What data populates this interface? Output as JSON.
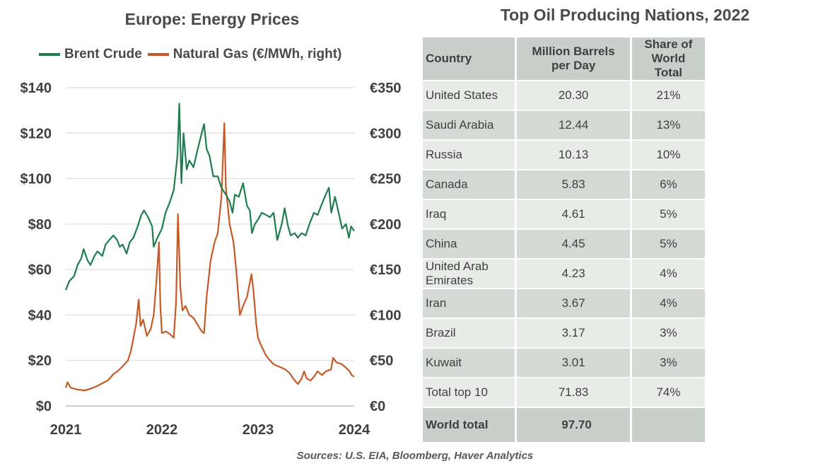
{
  "chart_data": [
    {
      "type": "line",
      "title": "Europe: Energy Prices",
      "x_axis": {
        "range": [
          "2021-01-01",
          "2024-01-01"
        ],
        "tick_labels": [
          "2021",
          "2022",
          "2023",
          "2024"
        ]
      },
      "y_left": {
        "range": [
          0,
          140
        ],
        "tick_labels": [
          "$0",
          "$20",
          "$40",
          "$60",
          "$80",
          "$100",
          "$120",
          "$140"
        ]
      },
      "y_right": {
        "range": [
          0,
          350
        ],
        "tick_labels": [
          "€0",
          "€50",
          "€100",
          "€150",
          "€200",
          "€250",
          "€300",
          "€350"
        ]
      },
      "grid": "horizontal",
      "legend_position": "top",
      "series": [
        {
          "name": "Brent Crude",
          "axis": "left",
          "color": "#1e7d4e",
          "points": [
            [
              "2021-01-01",
              51
            ],
            [
              "2021-01-15",
              55
            ],
            [
              "2021-02-01",
              57
            ],
            [
              "2021-02-15",
              62
            ],
            [
              "2021-03-01",
              65
            ],
            [
              "2021-03-10",
              69
            ],
            [
              "2021-03-25",
              64
            ],
            [
              "2021-04-05",
              62
            ],
            [
              "2021-04-20",
              66
            ],
            [
              "2021-05-01",
              68
            ],
            [
              "2021-05-20",
              66
            ],
            [
              "2021-06-01",
              71
            ],
            [
              "2021-06-15",
              73
            ],
            [
              "2021-07-01",
              75
            ],
            [
              "2021-07-15",
              73
            ],
            [
              "2021-07-25",
              70
            ],
            [
              "2021-08-05",
              71
            ],
            [
              "2021-08-20",
              67
            ],
            [
              "2021-09-01",
              72
            ],
            [
              "2021-09-15",
              74
            ],
            [
              "2021-10-01",
              79
            ],
            [
              "2021-10-15",
              84
            ],
            [
              "2021-10-25",
              86
            ],
            [
              "2021-11-10",
              83
            ],
            [
              "2021-11-25",
              79
            ],
            [
              "2021-12-01",
              70
            ],
            [
              "2021-12-15",
              74
            ],
            [
              "2022-01-01",
              78
            ],
            [
              "2022-01-15",
              85
            ],
            [
              "2022-02-01",
              90
            ],
            [
              "2022-02-15",
              95
            ],
            [
              "2022-03-01",
              110
            ],
            [
              "2022-03-08",
              133
            ],
            [
              "2022-03-16",
              98
            ],
            [
              "2022-03-24",
              120
            ],
            [
              "2022-04-05",
              104
            ],
            [
              "2022-04-15",
              108
            ],
            [
              "2022-05-01",
              105
            ],
            [
              "2022-05-15",
              112
            ],
            [
              "2022-06-01",
              120
            ],
            [
              "2022-06-10",
              124
            ],
            [
              "2022-06-20",
              113
            ],
            [
              "2022-07-01",
              110
            ],
            [
              "2022-07-15",
              101
            ],
            [
              "2022-08-01",
              101
            ],
            [
              "2022-08-15",
              96
            ],
            [
              "2022-09-01",
              93
            ],
            [
              "2022-09-15",
              90
            ],
            [
              "2022-09-26",
              85
            ],
            [
              "2022-10-05",
              93
            ],
            [
              "2022-10-20",
              92
            ],
            [
              "2022-11-05",
              98
            ],
            [
              "2022-11-20",
              88
            ],
            [
              "2022-12-01",
              86
            ],
            [
              "2022-12-09",
              76
            ],
            [
              "2022-12-20",
              80
            ],
            [
              "2023-01-01",
              82
            ],
            [
              "2023-01-15",
              85
            ],
            [
              "2023-02-01",
              84
            ],
            [
              "2023-02-15",
              83
            ],
            [
              "2023-03-01",
              85
            ],
            [
              "2023-03-15",
              73
            ],
            [
              "2023-04-01",
              80
            ],
            [
              "2023-04-12",
              87
            ],
            [
              "2023-04-25",
              79
            ],
            [
              "2023-05-05",
              75
            ],
            [
              "2023-05-20",
              76
            ],
            [
              "2023-06-01",
              74
            ],
            [
              "2023-06-15",
              76
            ],
            [
              "2023-07-01",
              75
            ],
            [
              "2023-07-15",
              80
            ],
            [
              "2023-08-01",
              85
            ],
            [
              "2023-08-15",
              84
            ],
            [
              "2023-09-01",
              89
            ],
            [
              "2023-09-15",
              93
            ],
            [
              "2023-09-27",
              96
            ],
            [
              "2023-10-06",
              85
            ],
            [
              "2023-10-20",
              92
            ],
            [
              "2023-11-01",
              86
            ],
            [
              "2023-11-16",
              78
            ],
            [
              "2023-12-01",
              80
            ],
            [
              "2023-12-12",
              74
            ],
            [
              "2023-12-20",
              79
            ],
            [
              "2024-01-01",
              77
            ]
          ]
        },
        {
          "name": "Natural Gas (€/MWh, right)",
          "axis": "right",
          "color": "#c55a28",
          "points": [
            [
              "2021-01-01",
              20
            ],
            [
              "2021-01-08",
              26
            ],
            [
              "2021-01-20",
              20
            ],
            [
              "2021-02-15",
              18
            ],
            [
              "2021-03-15",
              17
            ],
            [
              "2021-04-15",
              20
            ],
            [
              "2021-05-01",
              22
            ],
            [
              "2021-05-20",
              25
            ],
            [
              "2021-06-10",
              28
            ],
            [
              "2021-07-01",
              35
            ],
            [
              "2021-07-20",
              39
            ],
            [
              "2021-08-10",
              45
            ],
            [
              "2021-08-25",
              50
            ],
            [
              "2021-09-05",
              60
            ],
            [
              "2021-09-15",
              75
            ],
            [
              "2021-09-25",
              90
            ],
            [
              "2021-10-05",
              117
            ],
            [
              "2021-10-12",
              88
            ],
            [
              "2021-10-22",
              95
            ],
            [
              "2021-11-05",
              77
            ],
            [
              "2021-11-20",
              85
            ],
            [
              "2021-12-01",
              100
            ],
            [
              "2021-12-12",
              140
            ],
            [
              "2021-12-21",
              180
            ],
            [
              "2021-12-26",
              110
            ],
            [
              "2022-01-01",
              80
            ],
            [
              "2022-01-15",
              82
            ],
            [
              "2022-02-01",
              79
            ],
            [
              "2022-02-15",
              75
            ],
            [
              "2022-02-24",
              115
            ],
            [
              "2022-03-03",
              211
            ],
            [
              "2022-03-12",
              130
            ],
            [
              "2022-03-20",
              105
            ],
            [
              "2022-04-01",
              110
            ],
            [
              "2022-04-15",
              100
            ],
            [
              "2022-05-01",
              97
            ],
            [
              "2022-05-15",
              90
            ],
            [
              "2022-06-01",
              82
            ],
            [
              "2022-06-10",
              80
            ],
            [
              "2022-06-20",
              120
            ],
            [
              "2022-07-05",
              160
            ],
            [
              "2022-07-20",
              180
            ],
            [
              "2022-08-01",
              190
            ],
            [
              "2022-08-15",
              230
            ],
            [
              "2022-08-26",
              311
            ],
            [
              "2022-09-01",
              240
            ],
            [
              "2022-09-15",
              200
            ],
            [
              "2022-09-30",
              180
            ],
            [
              "2022-10-10",
              150
            ],
            [
              "2022-10-24",
              100
            ],
            [
              "2022-11-05",
              110
            ],
            [
              "2022-11-20",
              120
            ],
            [
              "2022-12-07",
              145
            ],
            [
              "2022-12-15",
              125
            ],
            [
              "2022-12-25",
              90
            ],
            [
              "2023-01-01",
              75
            ],
            [
              "2023-01-15",
              65
            ],
            [
              "2023-02-01",
              55
            ],
            [
              "2023-02-15",
              50
            ],
            [
              "2023-03-01",
              46
            ],
            [
              "2023-03-15",
              44
            ],
            [
              "2023-04-01",
              42
            ],
            [
              "2023-04-15",
              40
            ],
            [
              "2023-05-01",
              36
            ],
            [
              "2023-05-15",
              30
            ],
            [
              "2023-06-01",
              24
            ],
            [
              "2023-06-15",
              30
            ],
            [
              "2023-06-25",
              38
            ],
            [
              "2023-07-05",
              30
            ],
            [
              "2023-07-20",
              28
            ],
            [
              "2023-08-01",
              32
            ],
            [
              "2023-08-15",
              38
            ],
            [
              "2023-09-01",
              34
            ],
            [
              "2023-09-15",
              38
            ],
            [
              "2023-10-05",
              40
            ],
            [
              "2023-10-13",
              53
            ],
            [
              "2023-10-25",
              48
            ],
            [
              "2023-11-15",
              46
            ],
            [
              "2023-12-01",
              42
            ],
            [
              "2023-12-15",
              38
            ],
            [
              "2023-12-22",
              34
            ],
            [
              "2024-01-01",
              32
            ]
          ]
        }
      ]
    },
    {
      "type": "table",
      "title": "Top Oil Producing Nations, 2022",
      "columns": [
        "Country",
        "Million Barrels\nper Day",
        "Share of World\nTotal"
      ],
      "rows": [
        [
          "United States",
          "20.30",
          "21%"
        ],
        [
          "Saudi Arabia",
          "12.44",
          "13%"
        ],
        [
          "Russia",
          "10.13",
          "10%"
        ],
        [
          "Canada",
          "5.83",
          "6%"
        ],
        [
          "Iraq",
          "4.61",
          "5%"
        ],
        [
          "China",
          "4.45",
          "5%"
        ],
        [
          "United Arab Emirates",
          "4.23",
          "4%"
        ],
        [
          "Iran",
          "3.67",
          "4%"
        ],
        [
          "Brazil",
          "3.17",
          "3%"
        ],
        [
          "Kuwait",
          "3.01",
          "3%"
        ],
        [
          "Total top 10",
          "71.83",
          "74%"
        ]
      ],
      "world_total": [
        "World total",
        "97.70",
        ""
      ]
    }
  ],
  "sources": "Sources: U.S. EIA, Bloomberg, Haver Analytics"
}
